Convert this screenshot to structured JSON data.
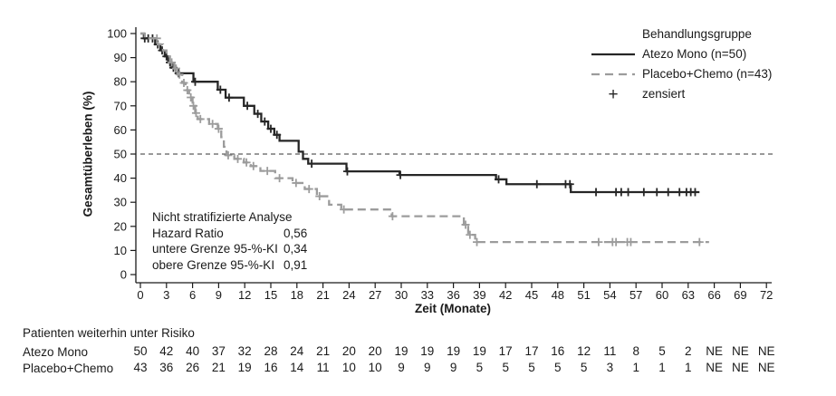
{
  "chart_data": {
    "type": "line",
    "subtype": "kaplan_meier_step",
    "title": "",
    "xlabel": "Zeit (Monate)",
    "ylabel": "Gesamtüberleben (%)",
    "xlim": [
      0,
      72
    ],
    "ylim": [
      0,
      100
    ],
    "grid": "off",
    "x_ticks": [
      0,
      3,
      6,
      9,
      12,
      15,
      18,
      21,
      24,
      27,
      30,
      33,
      36,
      39,
      42,
      45,
      48,
      51,
      54,
      57,
      60,
      63,
      66,
      69,
      72
    ],
    "y_ticks": [
      0,
      10,
      20,
      30,
      40,
      50,
      60,
      70,
      80,
      90,
      100
    ],
    "reference_line_y": 50,
    "axis_color": "#1a1a1a",
    "legend": {
      "position": "top-right",
      "title": "Behandlungsgruppe",
      "items": [
        {
          "label": "Atezo Mono (n=50)",
          "style": "solid-line",
          "color": "#262626"
        },
        {
          "label": "Placebo+Chemo (n=43)",
          "style": "dashed-line",
          "color": "#9c9c9c"
        },
        {
          "label": "zensiert",
          "style": "plus-marker",
          "color": "#262626"
        }
      ]
    },
    "annotation": {
      "title": "Nicht stratifizierte Analyse",
      "rows": [
        [
          "Hazard Ratio",
          "0,56"
        ],
        [
          "untere Grenze 95-%-KI",
          "0,34"
        ],
        [
          "obere Grenze 95-%-KI",
          "0,91"
        ]
      ]
    },
    "series": [
      {
        "name": "Atezo Mono (n=50)",
        "color": "#262626",
        "line_style": "solid",
        "steps": [
          [
            0,
            100
          ],
          [
            0.4,
            98
          ],
          [
            1.7,
            95.5
          ],
          [
            2.3,
            93
          ],
          [
            2.8,
            90.5
          ],
          [
            3.2,
            88
          ],
          [
            3.6,
            85.8
          ],
          [
            4.1,
            83.5
          ],
          [
            6.1,
            80
          ],
          [
            8.9,
            76.7
          ],
          [
            9.8,
            73.4
          ],
          [
            11.9,
            70
          ],
          [
            13.1,
            66.7
          ],
          [
            13.9,
            63.5
          ],
          [
            14.7,
            60.5
          ],
          [
            15.4,
            58
          ],
          [
            16,
            55.5
          ],
          [
            18.2,
            51
          ],
          [
            18.7,
            48
          ],
          [
            19.3,
            46
          ],
          [
            23.7,
            42.8
          ],
          [
            29.8,
            41.3
          ],
          [
            40.9,
            39.5
          ],
          [
            42.1,
            37.5
          ],
          [
            49.5,
            34.2
          ]
        ],
        "end_time": 64.3,
        "censors": [
          [
            0.5,
            98
          ],
          [
            0.9,
            98
          ],
          [
            1.4,
            98
          ],
          [
            2,
            95.5
          ],
          [
            2.5,
            93
          ],
          [
            3,
            90.5
          ],
          [
            3.4,
            88
          ],
          [
            3.8,
            85.8
          ],
          [
            4.4,
            83.5
          ],
          [
            6.3,
            80
          ],
          [
            9.2,
            76.7
          ],
          [
            10.2,
            73.4
          ],
          [
            12.3,
            70
          ],
          [
            13.5,
            66.7
          ],
          [
            14.3,
            63.5
          ],
          [
            15,
            60.5
          ],
          [
            15.7,
            58
          ],
          [
            19.7,
            46
          ],
          [
            23.8,
            42.8
          ],
          [
            29.9,
            41.3
          ],
          [
            41.2,
            39.5
          ],
          [
            45.6,
            37.5
          ],
          [
            48.9,
            37.5
          ],
          [
            49.4,
            37.5
          ],
          [
            52.4,
            34.2
          ],
          [
            54.7,
            34.2
          ],
          [
            55.3,
            34.2
          ],
          [
            56.1,
            34.2
          ],
          [
            57.9,
            34.2
          ],
          [
            59.4,
            34.2
          ],
          [
            60.7,
            34.2
          ],
          [
            62,
            34.2
          ],
          [
            62.8,
            34.2
          ],
          [
            63.3,
            34.2
          ],
          [
            63.8,
            34.2
          ]
        ]
      },
      {
        "name": "Placebo+Chemo (n=43)",
        "color": "#9c9c9c",
        "line_style": "dashed",
        "steps": [
          [
            0,
            100
          ],
          [
            0.5,
            98
          ],
          [
            2,
            95.5
          ],
          [
            2.6,
            93
          ],
          [
            3,
            90.5
          ],
          [
            3.4,
            88
          ],
          [
            3.9,
            85.5
          ],
          [
            4.3,
            83
          ],
          [
            4.8,
            79.5
          ],
          [
            5.2,
            76.5
          ],
          [
            5.6,
            73.5
          ],
          [
            6,
            70
          ],
          [
            6.3,
            67
          ],
          [
            6.6,
            64.5
          ],
          [
            7.9,
            62.5
          ],
          [
            8.9,
            60.5
          ],
          [
            9.3,
            57
          ],
          [
            9.6,
            53
          ],
          [
            9.9,
            49.5
          ],
          [
            10.8,
            48
          ],
          [
            11.9,
            46.5
          ],
          [
            12.7,
            45
          ],
          [
            13.8,
            43
          ],
          [
            15.5,
            40
          ],
          [
            17.5,
            38
          ],
          [
            18.9,
            35.5
          ],
          [
            20.3,
            32.5
          ],
          [
            21.7,
            29
          ],
          [
            23.1,
            27
          ],
          [
            28.9,
            24.2
          ],
          [
            37.2,
            20.7
          ],
          [
            37.7,
            16.5
          ],
          [
            38.5,
            13.5
          ]
        ],
        "end_time": 65.4,
        "censors": [
          [
            1.9,
            98
          ],
          [
            3.6,
            88
          ],
          [
            4.1,
            85.5
          ],
          [
            4.5,
            83
          ],
          [
            5,
            79.5
          ],
          [
            5.4,
            76.5
          ],
          [
            5.8,
            73.5
          ],
          [
            6.1,
            70
          ],
          [
            6.4,
            67
          ],
          [
            6.9,
            64.5
          ],
          [
            8.3,
            62.5
          ],
          [
            9,
            60.5
          ],
          [
            10.1,
            49.5
          ],
          [
            11.2,
            48
          ],
          [
            12.2,
            46.5
          ],
          [
            13,
            45
          ],
          [
            14.6,
            43
          ],
          [
            16,
            40
          ],
          [
            17.9,
            38
          ],
          [
            19.4,
            35.5
          ],
          [
            20.6,
            32.5
          ],
          [
            23.4,
            27
          ],
          [
            29,
            24.2
          ],
          [
            37.4,
            20.7
          ],
          [
            37.9,
            16.5
          ],
          [
            38.7,
            13.5
          ],
          [
            52.7,
            13.5
          ],
          [
            54.3,
            13.5
          ],
          [
            54.7,
            13.5
          ],
          [
            56,
            13.5
          ],
          [
            56.4,
            13.5
          ],
          [
            64.3,
            13.5
          ]
        ]
      }
    ]
  },
  "risk_table": {
    "title": "Patienten weiterhin unter Risiko",
    "months": [
      0,
      3,
      6,
      9,
      12,
      15,
      18,
      21,
      24,
      27,
      30,
      33,
      36,
      39,
      42,
      45,
      48,
      51,
      54,
      57,
      60,
      63,
      66,
      69,
      72
    ],
    "rows": [
      {
        "label": "Atezo Mono",
        "values": [
          "50",
          "42",
          "40",
          "37",
          "32",
          "28",
          "24",
          "21",
          "20",
          "20",
          "19",
          "19",
          "19",
          "19",
          "17",
          "17",
          "16",
          "12",
          "11",
          "8",
          "5",
          "2",
          "NE",
          "NE",
          "NE"
        ]
      },
      {
        "label": "Placebo+Chemo",
        "values": [
          "43",
          "36",
          "26",
          "21",
          "19",
          "16",
          "14",
          "11",
          "10",
          "10",
          "9",
          "9",
          "9",
          "5",
          "5",
          "5",
          "5",
          "5",
          "3",
          "1",
          "1",
          "1",
          "NE",
          "NE",
          "NE"
        ]
      }
    ]
  }
}
